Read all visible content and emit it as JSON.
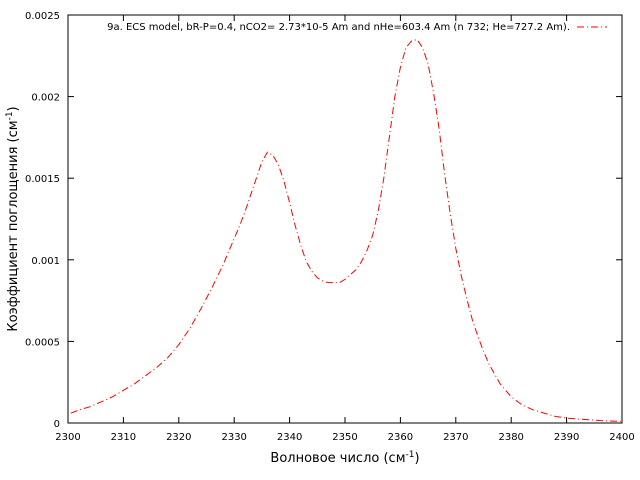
{
  "chart_data": {
    "type": "line",
    "xlabel": "Волновое число (см",
    "xlabel_sup": "-1",
    "xlabel_tail": ")",
    "ylabel": "Коэффициент поглощения (см",
    "ylabel_sup": "-1",
    "ylabel_tail": ")",
    "xlim": [
      2300,
      2400
    ],
    "ylim": [
      0,
      0.0025
    ],
    "x_ticks": [
      2300,
      2310,
      2320,
      2330,
      2340,
      2350,
      2360,
      2370,
      2380,
      2390,
      2400
    ],
    "x_tick_labels": [
      "2300",
      "2310",
      "2320",
      "2330",
      "2340",
      "2350",
      "2360",
      "2370",
      "2380",
      "2390",
      "2400"
    ],
    "y_ticks": [
      0,
      0.0005,
      0.001,
      0.0015,
      0.002,
      0.0025
    ],
    "y_tick_labels": [
      "0",
      "0.0005",
      "0.001",
      "0.0015",
      "0.002",
      "0.0025"
    ],
    "grid": false,
    "legend_position": "top-right",
    "series": [
      {
        "name": "9a. ECS model, bR-P=0.4, nCO2= 2.73*10-5 Am and nHe=603.4 Am (n  732; He=727.2 Am).",
        "color": "#ff0000",
        "line_style": "dash-dot",
        "x": [
          2300.5,
          2302,
          2304,
          2306,
          2308,
          2310,
          2312,
          2314,
          2316,
          2318,
          2320,
          2322,
          2324,
          2326,
          2328,
          2330,
          2331,
          2332,
          2333,
          2334,
          2335,
          2336,
          2337,
          2338,
          2339,
          2340,
          2341,
          2342,
          2343,
          2344,
          2345,
          2346,
          2347,
          2348,
          2349,
          2350,
          2351,
          2352,
          2353,
          2354,
          2355,
          2356,
          2357,
          2358,
          2359,
          2360,
          2361,
          2362,
          2363,
          2364,
          2365,
          2366,
          2367,
          2368,
          2369,
          2370,
          2371,
          2372,
          2373,
          2374,
          2375,
          2376,
          2377,
          2378,
          2380,
          2382,
          2384,
          2386,
          2388,
          2390,
          2392,
          2394,
          2396,
          2398,
          2400
        ],
        "y": [
          6e-05,
          8e-05,
          0.0001,
          0.00013,
          0.00016,
          0.0002,
          0.00024,
          0.00029,
          0.00034,
          0.0004,
          0.00048,
          0.00058,
          0.0007,
          0.00083,
          0.00097,
          0.00113,
          0.00121,
          0.0013,
          0.0014,
          0.0015,
          0.0016,
          0.00166,
          0.00164,
          0.00158,
          0.00148,
          0.00135,
          0.00121,
          0.00109,
          0.00099,
          0.00093,
          0.00089,
          0.00087,
          0.00086,
          0.00086,
          0.00086,
          0.00088,
          0.00091,
          0.00094,
          0.00099,
          0.00106,
          0.00115,
          0.0013,
          0.0015,
          0.00175,
          0.002,
          0.00218,
          0.0023,
          0.00234,
          0.00235,
          0.0023,
          0.0022,
          0.00202,
          0.0018,
          0.00152,
          0.00128,
          0.00107,
          0.0009,
          0.00076,
          0.00063,
          0.00053,
          0.00044,
          0.00036,
          0.0003,
          0.00024,
          0.00016,
          0.00011,
          8e-05,
          6e-05,
          4e-05,
          3e-05,
          2.5e-05,
          2e-05,
          1.5e-05,
          1.2e-05,
          1e-05
        ]
      }
    ]
  }
}
